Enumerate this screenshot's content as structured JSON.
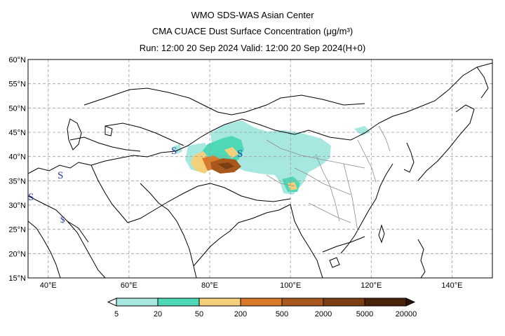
{
  "header": {
    "line1": "WMO SDS-WAS Asian Center",
    "line2": "CMA CUACE Dust Surface Concentration (μg/m³)",
    "line3": "Run: 12:00 20 Sep 2024    Valid: 12:00 20 Sep 2024(H+0)"
  },
  "map": {
    "lon_range": [
      35,
      150
    ],
    "lat_range": [
      15,
      60
    ],
    "lat_ticks": [
      "15°N",
      "20°N",
      "25°N",
      "30°N",
      "35°N",
      "40°N",
      "45°N",
      "50°N",
      "55°N",
      "60°N"
    ],
    "lon_ticks": [
      "40°E",
      "60°E",
      "80°E",
      "100°E",
      "120°E",
      "140°E"
    ],
    "grid": true,
    "storm_markers": [
      "S",
      "S",
      "S",
      "S",
      "$"
    ]
  },
  "colorbar": {
    "labels": [
      "5",
      "20",
      "50",
      "200",
      "500",
      "2000",
      "5000",
      "20000"
    ],
    "colors": [
      "#a6e8e0",
      "#4fd8b8",
      "#f5d07a",
      "#d87a2a",
      "#a8581c",
      "#7a3e12",
      "#4a2408",
      "#2a1404"
    ]
  }
}
